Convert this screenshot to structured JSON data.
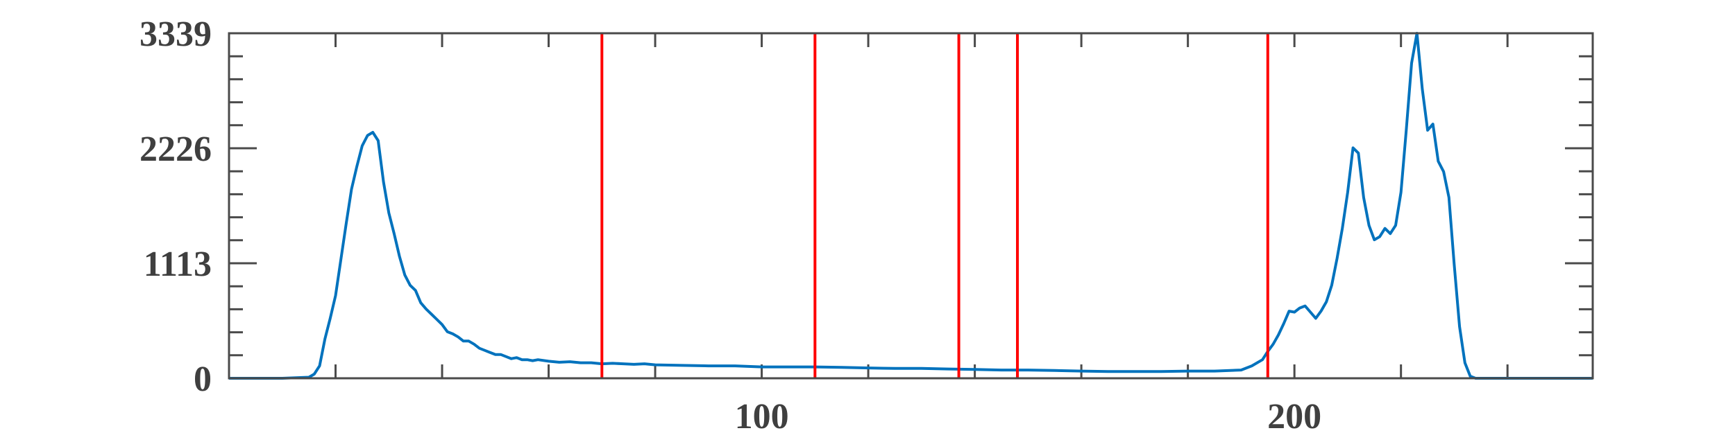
{
  "chart_data": {
    "type": "line",
    "title": "",
    "xlabel": "",
    "ylabel": "",
    "xlim": [
      0,
      256
    ],
    "ylim": [
      0,
      3339
    ],
    "x_ticks": [
      {
        "value": 100,
        "label": "100"
      },
      {
        "value": 200,
        "label": "200"
      }
    ],
    "y_ticks": [
      {
        "value": 0,
        "label": "0"
      },
      {
        "value": 1113,
        "label": "1113"
      },
      {
        "value": 2226,
        "label": "2226"
      },
      {
        "value": 3339,
        "label": "3339"
      }
    ],
    "grid": false,
    "series": [
      {
        "color": "#0072BD",
        "x": [
          0,
          10,
          15,
          16,
          17,
          18,
          19,
          20,
          21,
          22,
          23,
          24,
          25,
          26,
          27,
          28,
          29,
          30,
          31,
          32,
          33,
          34,
          35,
          36,
          37,
          38,
          39,
          40,
          41,
          42,
          43,
          44,
          45,
          46,
          47,
          48,
          49,
          50,
          51,
          52,
          53,
          54,
          55,
          56,
          57,
          58,
          60,
          62,
          64,
          66,
          68,
          70,
          72,
          74,
          76,
          78,
          80,
          85,
          90,
          95,
          100,
          105,
          110,
          115,
          120,
          125,
          130,
          135,
          140,
          145,
          150,
          155,
          160,
          165,
          170,
          175,
          180,
          185,
          190,
          192,
          194,
          195,
          196,
          197,
          198,
          199,
          200,
          201,
          202,
          203,
          204,
          205,
          206,
          207,
          208,
          209,
          210,
          211,
          212,
          213,
          214,
          215,
          216,
          217,
          218,
          219,
          220,
          221,
          222,
          223,
          224,
          225,
          226,
          227,
          228,
          229,
          230,
          231,
          232,
          233,
          234,
          235,
          236,
          237,
          238,
          239,
          240,
          241,
          242,
          243,
          244,
          250,
          256
        ],
        "y": [
          0,
          0,
          10,
          40,
          120,
          380,
          580,
          800,
          1150,
          1500,
          1830,
          2050,
          2250,
          2350,
          2380,
          2300,
          1900,
          1600,
          1400,
          1180,
          1000,
          900,
          850,
          730,
          670,
          620,
          570,
          520,
          450,
          430,
          400,
          360,
          360,
          330,
          290,
          270,
          250,
          230,
          230,
          210,
          190,
          200,
          180,
          180,
          170,
          180,
          165,
          155,
          160,
          150,
          150,
          140,
          145,
          140,
          135,
          140,
          130,
          125,
          120,
          120,
          110,
          110,
          110,
          105,
          100,
          95,
          95,
          90,
          85,
          80,
          80,
          75,
          70,
          65,
          65,
          65,
          70,
          70,
          80,
          120,
          180,
          260,
          330,
          420,
          530,
          650,
          640,
          680,
          700,
          640,
          580,
          650,
          740,
          900,
          1160,
          1450,
          1800,
          2230,
          2180,
          1750,
          1480,
          1340,
          1370,
          1450,
          1400,
          1480,
          1800,
          2400,
          3050,
          3339,
          2800,
          2400,
          2460,
          2100,
          2000,
          1750,
          1100,
          500,
          150,
          20,
          0,
          0,
          0,
          0,
          0,
          0,
          0,
          0,
          0,
          0,
          0,
          0,
          0
        ]
      }
    ],
    "vertical_lines": {
      "color": "#FF0000",
      "x": [
        70,
        110,
        137,
        148,
        195
      ]
    }
  }
}
